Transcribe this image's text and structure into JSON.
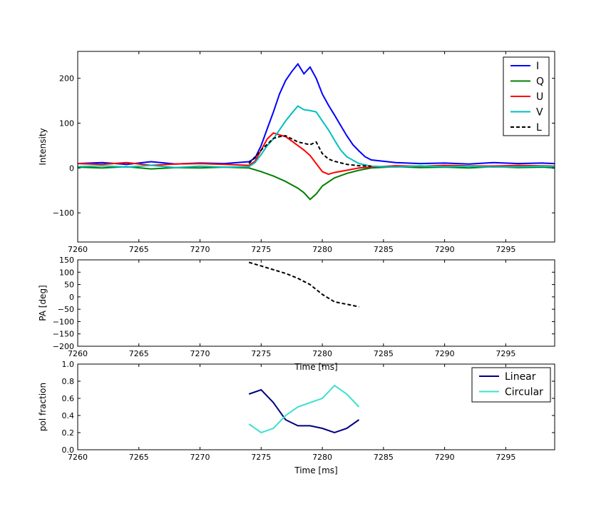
{
  "chart_data": [
    {
      "type": "line",
      "xlim": [
        7260,
        7299
      ],
      "ylim": [
        -165,
        260
      ],
      "xticks": [
        7260,
        7265,
        7270,
        7275,
        7280,
        7285,
        7290,
        7295
      ],
      "yticks": [
        -100,
        0,
        100,
        200
      ],
      "xtick_labels": [
        "7260",
        "7265",
        "7270",
        "7275",
        "7280",
        "7285",
        "7290",
        "7295"
      ],
      "ytick_labels": [
        "−100",
        "0",
        "100",
        "200"
      ],
      "xlabel": "",
      "ylabel": "Intensity",
      "grid": false,
      "legend": "top-right",
      "series": [
        {
          "name": "I",
          "color": "#0000ff",
          "style": "solid",
          "x": [
            7260,
            7262,
            7264,
            7266,
            7268,
            7270,
            7272,
            7274,
            7274.5,
            7275,
            7275.5,
            7276,
            7276.5,
            7277,
            7277.5,
            7278,
            7278.5,
            7279,
            7279.5,
            7280,
            7280.5,
            7281,
            7281.5,
            7282,
            7282.5,
            7283,
            7283.5,
            7284,
            7286,
            7288,
            7290,
            7292,
            7294,
            7296,
            7298,
            7299
          ],
          "y": [
            10,
            12,
            8,
            14,
            9,
            11,
            10,
            14,
            22,
            50,
            88,
            125,
            165,
            195,
            215,
            232,
            210,
            225,
            200,
            165,
            140,
            118,
            95,
            72,
            52,
            38,
            25,
            18,
            12,
            10,
            11,
            9,
            12,
            10,
            11,
            10
          ]
        },
        {
          "name": "Q",
          "color": "#008000",
          "style": "solid",
          "x": [
            7260,
            7262,
            7264,
            7266,
            7268,
            7270,
            7272,
            7274,
            7275,
            7276,
            7277,
            7278,
            7278.5,
            7279,
            7279.5,
            7280,
            7281,
            7282,
            7283,
            7284,
            7286,
            7288,
            7290,
            7292,
            7294,
            7296,
            7298,
            7299
          ],
          "y": [
            2,
            0,
            3,
            -2,
            1,
            0,
            2,
            0,
            -8,
            -18,
            -30,
            -45,
            -55,
            -70,
            -58,
            -40,
            -22,
            -12,
            -5,
            0,
            3,
            1,
            2,
            0,
            3,
            1,
            2,
            0
          ]
        },
        {
          "name": "U",
          "color": "#ff0000",
          "style": "solid",
          "x": [
            7260,
            7262,
            7264,
            7266,
            7268,
            7270,
            7272,
            7274,
            7274.5,
            7275,
            7275.5,
            7276,
            7276.5,
            7277,
            7277.5,
            7278,
            7278.5,
            7279,
            7279.5,
            7280,
            7280.5,
            7281,
            7282,
            7283,
            7284,
            7286,
            7288,
            7290,
            7292,
            7294,
            7296,
            7298,
            7299
          ],
          "y": [
            10,
            8,
            12,
            6,
            9,
            10,
            8,
            6,
            15,
            40,
            65,
            78,
            74,
            70,
            60,
            50,
            40,
            28,
            10,
            -8,
            -14,
            -10,
            -5,
            0,
            2,
            5,
            4,
            6,
            5,
            4,
            6,
            5,
            4
          ]
        },
        {
          "name": "V",
          "color": "#00bfbf",
          "style": "solid",
          "x": [
            7260,
            7262,
            7264,
            7266,
            7268,
            7270,
            7272,
            7274,
            7274.5,
            7275,
            7275.5,
            7276,
            7276.5,
            7277,
            7277.5,
            7278,
            7278.5,
            7279,
            7279.5,
            7280,
            7280.5,
            7281,
            7281.5,
            7282,
            7283,
            7284,
            7286,
            7288,
            7290,
            7292,
            7294,
            7296,
            7298,
            7299
          ],
          "y": [
            3,
            5,
            2,
            6,
            1,
            4,
            2,
            3,
            12,
            30,
            50,
            65,
            85,
            105,
            122,
            138,
            130,
            128,
            125,
            105,
            85,
            62,
            40,
            25,
            10,
            4,
            2,
            5,
            3,
            4,
            2,
            3,
            4,
            3
          ]
        },
        {
          "name": "L",
          "color": "#000000",
          "style": "dashed",
          "x": [
            7274,
            7275,
            7276,
            7276.5,
            7277,
            7277.5,
            7278,
            7278.5,
            7279,
            7279.5,
            7280,
            7280.5,
            7281,
            7282,
            7283,
            7284
          ],
          "y": [
            10,
            40,
            66,
            70,
            72,
            65,
            58,
            55,
            52,
            58,
            32,
            20,
            15,
            8,
            5,
            4
          ]
        }
      ]
    },
    {
      "type": "line",
      "xlim": [
        7260,
        7299
      ],
      "ylim": [
        -200,
        150
      ],
      "xticks": [
        7260,
        7265,
        7270,
        7275,
        7280,
        7285,
        7290,
        7295
      ],
      "yticks": [
        -200,
        -150,
        -100,
        -50,
        0,
        50,
        100,
        150
      ],
      "xtick_labels": [
        "7260",
        "7265",
        "7270",
        "7275",
        "7280",
        "7285",
        "7290",
        "7295"
      ],
      "ytick_labels": [
        "−200",
        "−150",
        "−100",
        "−50",
        "0",
        "50",
        "100",
        "150"
      ],
      "xlabel": "Time [ms]",
      "ylabel": "PA [deg]",
      "grid": false,
      "series": [
        {
          "color": "#000000",
          "style": "dashed",
          "x": [
            7260,
            7274,
            7275,
            7276,
            7277,
            7278,
            7279,
            7280,
            7281,
            7282,
            7283,
            7284,
            7299
          ],
          "y": [
            null,
            140,
            125,
            110,
            95,
            75,
            50,
            10,
            -20,
            -30,
            -40,
            null,
            null
          ]
        }
      ]
    },
    {
      "type": "line",
      "xlim": [
        7260,
        7299
      ],
      "ylim": [
        0,
        1
      ],
      "xticks": [
        7260,
        7265,
        7270,
        7275,
        7280,
        7285,
        7290,
        7295
      ],
      "yticks": [
        0.0,
        0.2,
        0.4,
        0.6,
        0.8,
        1.0
      ],
      "xtick_labels": [
        "7260",
        "7265",
        "7270",
        "7275",
        "7280",
        "7285",
        "7290",
        "7295"
      ],
      "ytick_labels": [
        "0.0",
        "0.2",
        "0.4",
        "0.6",
        "0.8",
        "1.0"
      ],
      "xlabel": "Time [ms]",
      "ylabel": "pol fraction",
      "grid": false,
      "legend": "top-right",
      "series": [
        {
          "name": "Linear",
          "color": "#000080",
          "style": "solid",
          "x": [
            7274,
            7275,
            7276,
            7277,
            7278,
            7279,
            7280,
            7281,
            7282,
            7283
          ],
          "y": [
            0.65,
            0.7,
            0.55,
            0.35,
            0.28,
            0.28,
            0.25,
            0.2,
            0.25,
            0.35
          ]
        },
        {
          "name": "Circular",
          "color": "#40e0d0",
          "style": "solid",
          "x": [
            7274,
            7275,
            7276,
            7277,
            7278,
            7279,
            7280,
            7281,
            7282,
            7283
          ],
          "y": [
            0.3,
            0.2,
            0.25,
            0.4,
            0.5,
            0.55,
            0.6,
            0.75,
            0.65,
            0.5
          ]
        }
      ]
    }
  ]
}
